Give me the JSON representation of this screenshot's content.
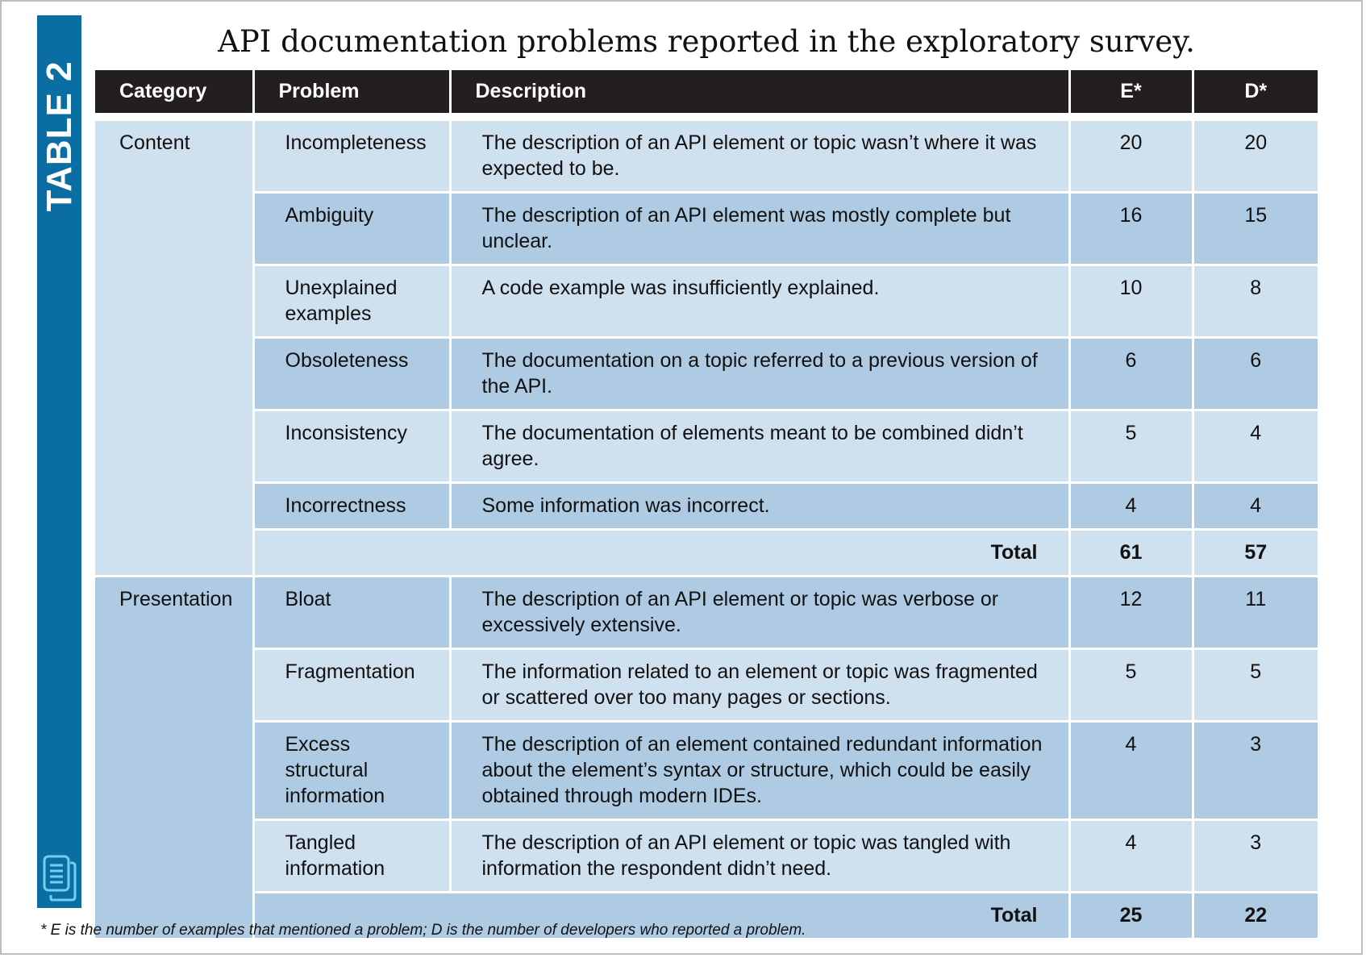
{
  "sidebar": {
    "label": "TABLE 2",
    "icon": "document-icon",
    "color": "#0b6ea3"
  },
  "title": "API documentation problems reported in the exploratory survey.",
  "table": {
    "headers": {
      "category": "Category",
      "problem": "Problem",
      "description": "Description",
      "e": "E*",
      "d": "D*"
    },
    "content": {
      "category": "Content",
      "rows": [
        {
          "problem": "Incompleteness",
          "description": "The description of an API element or topic wasn’t where it was expected to be.",
          "e": "20",
          "d": "20"
        },
        {
          "problem": "Ambiguity",
          "description": "The description of an API element was mostly complete but unclear.",
          "e": "16",
          "d": "15"
        },
        {
          "problem": "Unexplained examples",
          "description": "A code example was insufficiently explained.",
          "e": "10",
          "d": "8"
        },
        {
          "problem": "Obsoleteness",
          "description": "The documentation on a topic referred to a previous version of the API.",
          "e": "6",
          "d": "6"
        },
        {
          "problem": "Inconsistency",
          "description": "The documentation of elements meant to be combined didn’t agree.",
          "e": "5",
          "d": "4"
        },
        {
          "problem": "Incorrectness",
          "description": "Some information was incorrect.",
          "e": "4",
          "d": "4"
        }
      ],
      "total": {
        "label": "Total",
        "e": "61",
        "d": "57"
      }
    },
    "presentation": {
      "category": "Presentation",
      "rows": [
        {
          "problem": "Bloat",
          "description": "The description of an API element or topic was verbose or excessively extensive.",
          "e": "12",
          "d": "11"
        },
        {
          "problem": "Fragmentation",
          "description": "The information related to an element or topic was fragmented or scattered over too many pages or sections.",
          "e": "5",
          "d": "5"
        },
        {
          "problem": "Excess structural information",
          "description": "The description of an element contained redundant information about the element’s syntax or structure, which could be easily obtained through modern IDEs.",
          "e": "4",
          "d": "3"
        },
        {
          "problem": "Tangled information",
          "description": "The description of an API element or topic was tangled with information the respondent didn’t need.",
          "e": "4",
          "d": "3"
        }
      ],
      "total": {
        "label": "Total",
        "e": "25",
        "d": "22"
      }
    }
  },
  "footnote": "* E is the number of examples that mentioned a problem; D is the number of developers who reported a problem.",
  "colors": {
    "header_bg": "#231f20",
    "row_light": "#cfe0ef",
    "row_dark": "#aecbe3",
    "sidebar": "#0b6ea3"
  }
}
